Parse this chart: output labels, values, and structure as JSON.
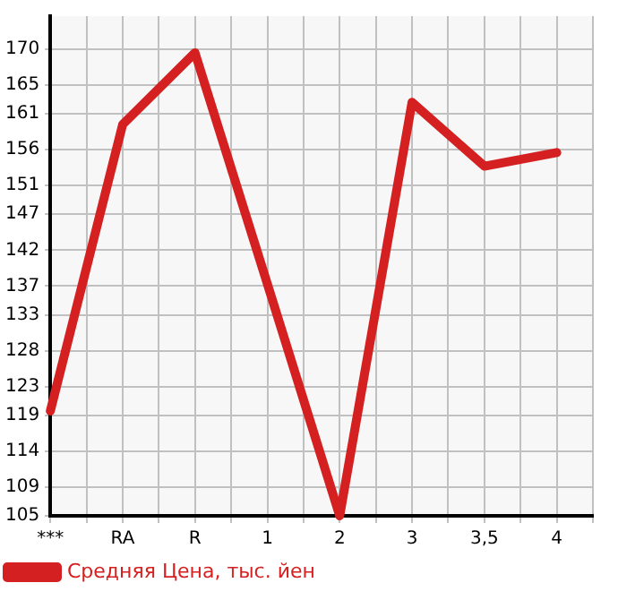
{
  "chart_data": {
    "type": "line",
    "categories": [
      "***",
      "RA",
      "R",
      "1",
      "2",
      "3",
      "3,5",
      "4"
    ],
    "series": [
      {
        "name": "Средняя Цена, тыс. йен",
        "color": "#d42020",
        "values": [
          119.6,
          159.5,
          169.5,
          137.3,
          105,
          162.6,
          153.7,
          155.6
        ]
      }
    ],
    "ylim": [
      105,
      174.6
    ],
    "yticks": [
      105,
      109,
      114,
      119,
      123,
      128,
      133,
      137,
      142,
      147,
      151,
      156,
      161,
      165,
      170
    ],
    "grid": true,
    "legend": "bottom left",
    "marker": "none",
    "line_style": "solid"
  }
}
